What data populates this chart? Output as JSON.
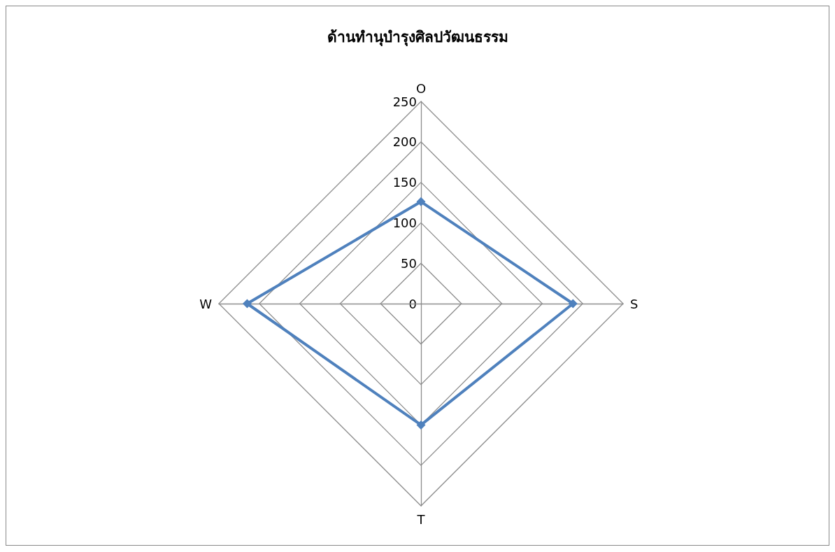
{
  "chart_data": {
    "type": "radar",
    "title": "ด้านทำนุบำรุงศิลปวัฒนธรรม",
    "categories": [
      "O",
      "S",
      "T",
      "W"
    ],
    "series": [
      {
        "color": "#4f81bd",
        "values": [
          126,
          188,
          150,
          215
        ]
      }
    ],
    "ylim": [
      0,
      250
    ],
    "yticks": [
      0,
      50,
      100,
      150,
      200,
      250
    ],
    "grid": true,
    "marker": "diamond"
  }
}
